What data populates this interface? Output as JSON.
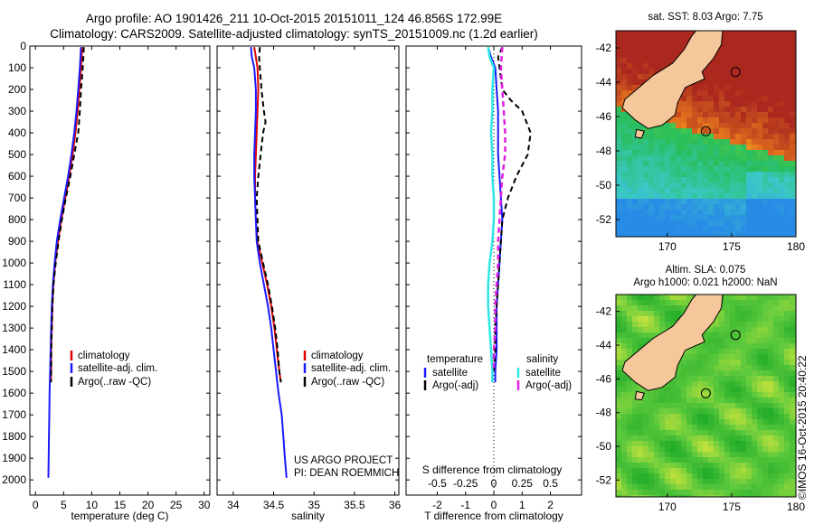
{
  "header": {
    "line1": "Argo profile: AO 1901426_211 10-Oct-2015 20151011_124 46.856S 172.99E",
    "line2": "Climatology: CARS2009. Satellite-adjusted climatology: synTS_20151009.nc (1.2d earlier)"
  },
  "credits": {
    "project": "US ARGO PROJECT",
    "pi": "PI: DEAN ROEMMICH",
    "imos": "©IMOS 16-Oct-2015 20:40:22"
  },
  "colors": {
    "climatology": "#e00000",
    "satellite": "#1a1aff",
    "argo": "#000000",
    "sal_satellite": "#2ee6e6",
    "sal_argo": "#e020e0",
    "land": "#f5c79b"
  },
  "chart_data": [
    {
      "type": "line",
      "id": "temperature",
      "xlabel": "temperature (deg C)",
      "xticks": [
        0,
        5,
        10,
        15,
        20,
        25,
        30
      ],
      "xlim": [
        -1,
        31
      ],
      "ylim": [
        2070,
        0
      ],
      "yticks": [
        0,
        100,
        200,
        300,
        400,
        500,
        600,
        700,
        800,
        900,
        1000,
        1100,
        1200,
        1300,
        1400,
        1500,
        1600,
        1700,
        1800,
        1900,
        2000
      ],
      "legend": [
        "climatology",
        "satellite-adj. clim.",
        "Argo(..raw -QC)"
      ],
      "series": [
        {
          "name": "climatology",
          "style": "red",
          "points": [
            [
              8.3,
              5
            ],
            [
              8.1,
              100
            ],
            [
              7.8,
              200
            ],
            [
              7.5,
              300
            ],
            [
              7.1,
              400
            ],
            [
              6.6,
              500
            ],
            [
              6.0,
              600
            ],
            [
              5.3,
              700
            ],
            [
              4.6,
              800
            ],
            [
              4.0,
              900
            ],
            [
              3.5,
              1000
            ],
            [
              3.2,
              1100
            ],
            [
              3.0,
              1200
            ],
            [
              2.9,
              1300
            ],
            [
              2.8,
              1400
            ],
            [
              2.8,
              1500
            ],
            [
              2.75,
              1550
            ]
          ]
        },
        {
          "name": "satellite-adj. clim.",
          "style": "blue",
          "points": [
            [
              8.1,
              5
            ],
            [
              7.9,
              100
            ],
            [
              7.6,
              200
            ],
            [
              7.3,
              300
            ],
            [
              6.9,
              400
            ],
            [
              6.4,
              500
            ],
            [
              5.8,
              600
            ],
            [
              5.1,
              700
            ],
            [
              4.4,
              800
            ],
            [
              3.8,
              900
            ],
            [
              3.4,
              1000
            ],
            [
              3.1,
              1100
            ],
            [
              2.9,
              1200
            ],
            [
              2.8,
              1300
            ],
            [
              2.7,
              1400
            ],
            [
              2.6,
              1500
            ],
            [
              2.5,
              1600
            ],
            [
              2.45,
              1700
            ],
            [
              2.4,
              1800
            ],
            [
              2.35,
              1900
            ],
            [
              2.3,
              1990
            ]
          ]
        },
        {
          "name": "Argo(..raw -QC)",
          "style": "black-dash",
          "points": [
            [
              8.6,
              5
            ],
            [
              8.4,
              100
            ],
            [
              8.1,
              200
            ],
            [
              7.9,
              300
            ],
            [
              7.6,
              400
            ],
            [
              6.9,
              500
            ],
            [
              6.2,
              600
            ],
            [
              5.4,
              700
            ],
            [
              4.7,
              800
            ],
            [
              4.1,
              900
            ],
            [
              3.6,
              1000
            ],
            [
              3.2,
              1100
            ],
            [
              3.0,
              1200
            ],
            [
              2.9,
              1300
            ],
            [
              2.8,
              1400
            ],
            [
              2.8,
              1500
            ],
            [
              2.75,
              1550
            ]
          ]
        }
      ]
    },
    {
      "type": "line",
      "id": "salinity",
      "xlabel": "salinity",
      "xticks": [
        34,
        34.5,
        35,
        35.5,
        36
      ],
      "xlim": [
        33.8,
        36.05
      ],
      "ylim": [
        2070,
        0
      ],
      "legend": [
        "climatology",
        "satellite-adj. clim.",
        "Argo(..raw -QC)"
      ],
      "series": [
        {
          "name": "climatology",
          "style": "red",
          "points": [
            [
              34.26,
              5
            ],
            [
              34.28,
              50
            ],
            [
              34.3,
              100
            ],
            [
              34.31,
              200
            ],
            [
              34.3,
              300
            ],
            [
              34.29,
              400
            ],
            [
              34.28,
              500
            ],
            [
              34.27,
              600
            ],
            [
              34.27,
              700
            ],
            [
              34.28,
              800
            ],
            [
              34.3,
              900
            ],
            [
              34.36,
              1000
            ],
            [
              34.42,
              1100
            ],
            [
              34.47,
              1200
            ],
            [
              34.51,
              1300
            ],
            [
              34.54,
              1400
            ],
            [
              34.57,
              1500
            ],
            [
              34.59,
              1550
            ]
          ]
        },
        {
          "name": "satellite-adj. clim.",
          "style": "blue",
          "points": [
            [
              34.22,
              5
            ],
            [
              34.23,
              50
            ],
            [
              34.26,
              100
            ],
            [
              34.28,
              200
            ],
            [
              34.28,
              300
            ],
            [
              34.27,
              400
            ],
            [
              34.26,
              500
            ],
            [
              34.26,
              600
            ],
            [
              34.27,
              700
            ],
            [
              34.28,
              800
            ],
            [
              34.29,
              900
            ],
            [
              34.33,
              1000
            ],
            [
              34.38,
              1100
            ],
            [
              34.43,
              1200
            ],
            [
              34.47,
              1300
            ],
            [
              34.5,
              1400
            ],
            [
              34.53,
              1500
            ],
            [
              34.56,
              1600
            ],
            [
              34.6,
              1700
            ],
            [
              34.62,
              1800
            ],
            [
              34.64,
              1900
            ],
            [
              34.66,
              1990
            ]
          ]
        },
        {
          "name": "Argo(..raw -QC)",
          "style": "black-dash",
          "points": [
            [
              34.33,
              5
            ],
            [
              34.32,
              50
            ],
            [
              34.33,
              100
            ],
            [
              34.35,
              200
            ],
            [
              34.38,
              300
            ],
            [
              34.4,
              350
            ],
            [
              34.37,
              400
            ],
            [
              34.34,
              500
            ],
            [
              34.31,
              600
            ],
            [
              34.29,
              700
            ],
            [
              34.3,
              800
            ],
            [
              34.31,
              900
            ],
            [
              34.37,
              1000
            ],
            [
              34.43,
              1100
            ],
            [
              34.48,
              1200
            ],
            [
              34.52,
              1300
            ],
            [
              34.55,
              1400
            ],
            [
              34.57,
              1500
            ],
            [
              34.59,
              1550
            ]
          ]
        }
      ]
    },
    {
      "type": "line",
      "id": "differences",
      "xlabel": "T difference from climatology",
      "xlabel2": "S difference from climatology",
      "xticks": [
        -2,
        -1,
        0,
        1,
        2
      ],
      "xticks2": [
        "-0.5",
        "-0.25",
        "0",
        "0.25",
        "0.5"
      ],
      "xlim": [
        -3.1,
        3.1
      ],
      "ylim": [
        2070,
        0
      ],
      "legend_headers": [
        "temperature",
        "salinity"
      ],
      "legend": [
        "satellite",
        "Argo(-adj)",
        "satellite",
        "Argo(-adj)"
      ],
      "series": [
        {
          "name": "satellite",
          "group": "temperature",
          "style": "blue",
          "points": [
            [
              -0.2,
              5
            ],
            [
              -0.1,
              50
            ],
            [
              0.05,
              100
            ],
            [
              0.1,
              200
            ],
            [
              0.15,
              300
            ],
            [
              0.15,
              400
            ],
            [
              0.15,
              500
            ],
            [
              0.2,
              600
            ],
            [
              0.25,
              700
            ],
            [
              0.3,
              800
            ],
            [
              0.25,
              900
            ],
            [
              0.2,
              1000
            ],
            [
              0.15,
              1100
            ],
            [
              0.1,
              1200
            ],
            [
              0.1,
              1300
            ],
            [
              0.1,
              1400
            ],
            [
              0.05,
              1500
            ],
            [
              0.05,
              1550
            ]
          ]
        },
        {
          "name": "Argo(-adj)",
          "group": "temperature",
          "style": "black-dash",
          "points": [
            [
              0.3,
              5
            ],
            [
              0.15,
              50
            ],
            [
              0.2,
              100
            ],
            [
              0.3,
              200
            ],
            [
              0.6,
              250
            ],
            [
              1.0,
              300
            ],
            [
              1.3,
              400
            ],
            [
              1.2,
              500
            ],
            [
              0.8,
              600
            ],
            [
              0.5,
              700
            ],
            [
              0.3,
              800
            ],
            [
              0.25,
              900
            ],
            [
              0.2,
              1000
            ],
            [
              0.15,
              1100
            ],
            [
              0.1,
              1200
            ],
            [
              0.05,
              1300
            ],
            [
              0.05,
              1400
            ],
            [
              0.0,
              1500
            ]
          ]
        },
        {
          "name": "satellite",
          "group": "salinity",
          "style": "cyan",
          "points": [
            [
              -0.2,
              5
            ],
            [
              -0.15,
              50
            ],
            [
              0.0,
              100
            ],
            [
              -0.05,
              200
            ],
            [
              -0.05,
              300
            ],
            [
              -0.1,
              400
            ],
            [
              -0.05,
              500
            ],
            [
              -0.05,
              600
            ],
            [
              0.0,
              700
            ],
            [
              0.0,
              800
            ],
            [
              -0.05,
              900
            ],
            [
              -0.15,
              1000
            ],
            [
              -0.2,
              1100
            ],
            [
              -0.2,
              1200
            ],
            [
              -0.15,
              1300
            ],
            [
              -0.1,
              1400
            ],
            [
              -0.05,
              1500
            ],
            [
              -0.05,
              1550
            ]
          ]
        },
        {
          "name": "Argo(-adj)",
          "group": "salinity",
          "style": "magenta-dash",
          "points": [
            [
              0.3,
              5
            ],
            [
              0.25,
              100
            ],
            [
              0.3,
              200
            ],
            [
              0.35,
              300
            ],
            [
              0.4,
              400
            ],
            [
              0.4,
              500
            ],
            [
              0.3,
              600
            ],
            [
              0.25,
              700
            ],
            [
              0.2,
              800
            ],
            [
              0.15,
              900
            ],
            [
              0.15,
              1000
            ],
            [
              0.1,
              1100
            ],
            [
              0.05,
              1200
            ],
            [
              0.05,
              1300
            ],
            [
              0.0,
              1400
            ],
            [
              0.0,
              1500
            ]
          ]
        }
      ]
    },
    {
      "type": "heatmap",
      "id": "sst-map",
      "title": "sat. SST: 8.03 Argo: 7.75",
      "xticks": [
        170,
        175,
        180
      ],
      "yticks": [
        -42,
        -44,
        -46,
        -48,
        -50,
        -52
      ],
      "xlim": [
        166,
        180
      ],
      "ylim": [
        -53,
        -41
      ],
      "argo_position": [
        172.99,
        -46.856
      ]
    },
    {
      "type": "heatmap",
      "id": "sla-map",
      "title": "Altim. SLA: 0.075",
      "subtitle": "Argo h1000: 0.021 h2000: NaN",
      "xticks": [
        170,
        175,
        180
      ],
      "yticks": [
        -42,
        -44,
        -46,
        -48,
        -50,
        -52
      ],
      "xlim": [
        166,
        180
      ],
      "ylim": [
        -53,
        -41
      ],
      "argo_position": [
        172.99,
        -46.856
      ]
    }
  ]
}
